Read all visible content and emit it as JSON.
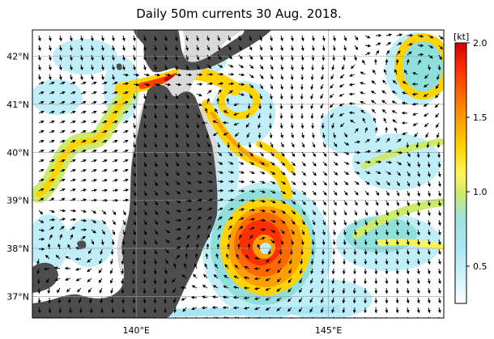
{
  "title": "Daily 50m currents 30 Aug. 2018.",
  "map": {
    "lon_range": [
      137.3,
      148.0
    ],
    "lat_range": [
      36.55,
      42.55
    ],
    "lat_ticks": [
      {
        "value": 42,
        "label": "42°N"
      },
      {
        "value": 41,
        "label": "41°N"
      },
      {
        "value": 40,
        "label": "40°N"
      },
      {
        "value": 39,
        "label": "39°N"
      },
      {
        "value": 38,
        "label": "38°N"
      },
      {
        "value": 37,
        "label": "37°N"
      }
    ],
    "lon_ticks": [
      {
        "value": 140,
        "label": "140°E"
      },
      {
        "value": 145,
        "label": "145°E"
      }
    ],
    "land_color": "#4d4d4d",
    "shelf_color": "#d9d9d9",
    "grid_color": "#9a9a9a"
  },
  "colorbar": {
    "unit": "[kt]",
    "ticks": [
      {
        "value": 2.0,
        "label": "2.0"
      },
      {
        "value": 1.5,
        "label": "1.5"
      },
      {
        "value": 1.0,
        "label": "1.0"
      },
      {
        "value": 0.5,
        "label": "0.5"
      }
    ],
    "range": [
      0.25,
      2.0
    ],
    "colors": [
      "#ffffff",
      "#d6f4fb",
      "#a8e6f3",
      "#8fe0dc",
      "#cdeb6a",
      "#fff35a",
      "#ffd400",
      "#ffa000",
      "#ff6a00",
      "#ff3000",
      "#e60000",
      "#c80000"
    ]
  },
  "chart_data": {
    "type": "heatmap",
    "variable": "current speed",
    "unit": "kt",
    "features": [
      {
        "name": "tsugaru-jet",
        "lon": 140.6,
        "lat": 41.4,
        "speed": 1.8
      },
      {
        "name": "warm-eddy-center",
        "lon": 143.0,
        "lat": 38.0,
        "speed": 0.3
      },
      {
        "name": "warm-eddy-ring",
        "lon": 143.0,
        "lat": 38.0,
        "speed": 1.6
      },
      {
        "name": "coastal-branch",
        "lon": 142.0,
        "lat": 39.8,
        "speed": 1.2
      },
      {
        "name": "ne-eddy",
        "lon": 147.3,
        "lat": 42.0,
        "speed": 1.0
      },
      {
        "name": "japan-sea-current",
        "lon": 138.5,
        "lat": 39.8,
        "speed": 1.0
      }
    ]
  }
}
